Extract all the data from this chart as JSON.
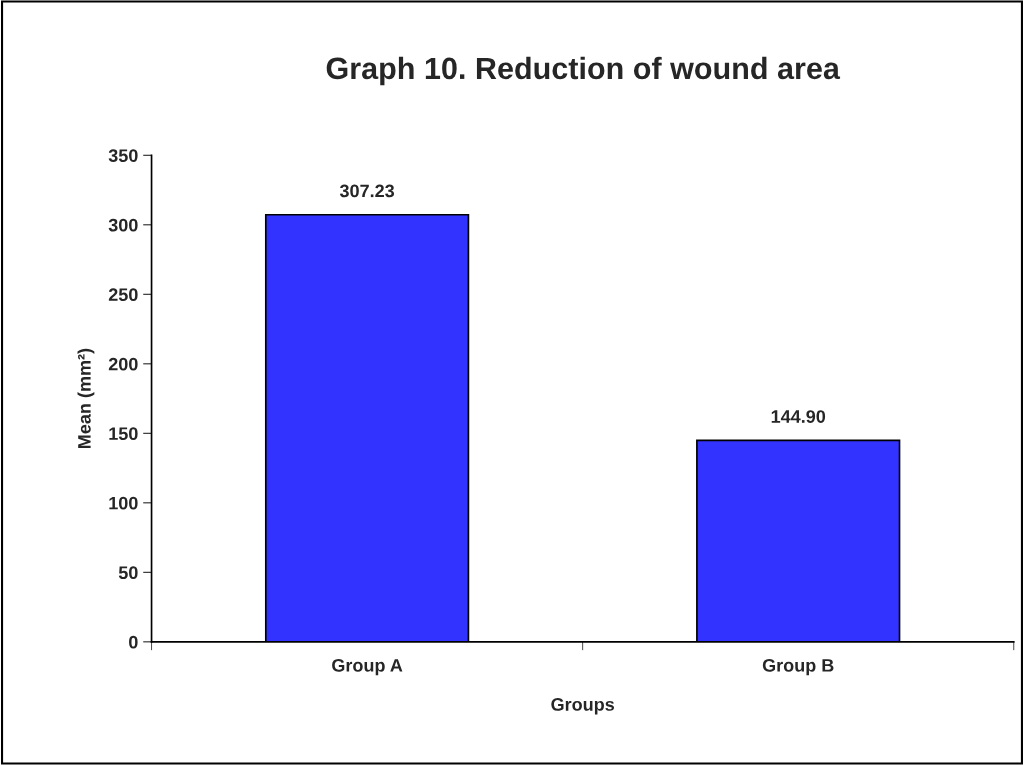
{
  "chart_data": {
    "type": "bar",
    "title": "Graph 10. Reduction of wound area",
    "xlabel": "Groups",
    "ylabel": "Mean (mm²)",
    "categories": [
      "Group A",
      "Group B"
    ],
    "values": [
      307.23,
      144.9
    ],
    "value_labels": [
      "307.23",
      "144.90"
    ],
    "color": "#3333ff",
    "ylim": [
      0,
      350
    ],
    "yticks": [
      0,
      50,
      100,
      150,
      200,
      250,
      300,
      350
    ],
    "grid": false,
    "legend": false
  }
}
